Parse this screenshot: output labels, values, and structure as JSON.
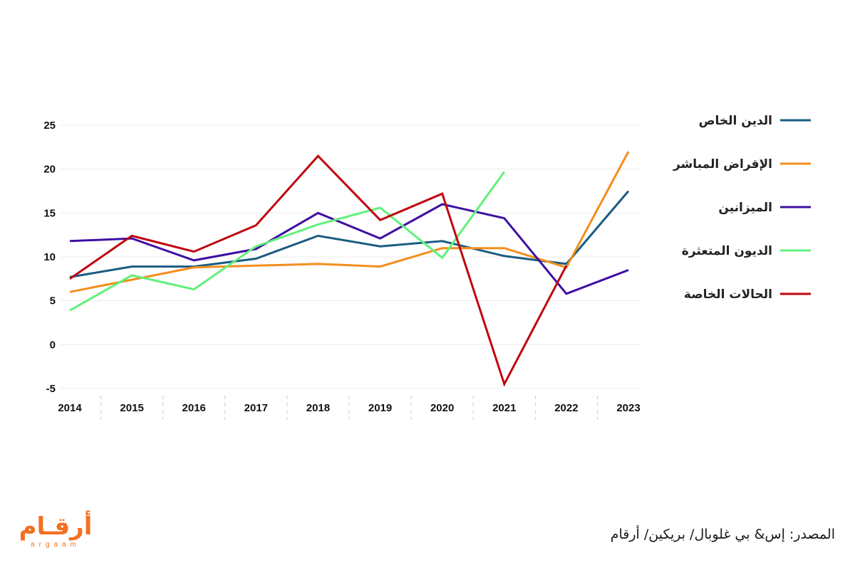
{
  "chart_data": {
    "type": "line",
    "title": "",
    "xlabel": "",
    "ylabel": "",
    "ylim": [
      -5,
      25
    ],
    "yticks": [
      -5,
      0,
      5,
      10,
      15,
      20,
      25
    ],
    "grid": true,
    "legend_position": "right",
    "x": [
      "2014",
      "2015",
      "2016",
      "2017",
      "2018",
      "2019",
      "2020",
      "2021",
      "2022",
      "2023"
    ],
    "series": [
      {
        "name": "الدين الخاص",
        "color": "#1a5c82",
        "values": [
          7.7,
          8.9,
          8.9,
          9.8,
          12.4,
          11.2,
          11.8,
          10.1,
          9.2,
          17.5
        ]
      },
      {
        "name": "الإقراض المباشر",
        "color": "#f28e1c",
        "values": [
          6.0,
          7.4,
          8.8,
          9.0,
          9.2,
          8.9,
          11.0,
          11.0,
          8.8,
          22.0
        ]
      },
      {
        "name": "الميزانين",
        "color": "#3d0fa3",
        "values": [
          11.8,
          12.1,
          9.6,
          10.9,
          15.0,
          12.1,
          16.0,
          14.4,
          5.8,
          8.5
        ]
      },
      {
        "name": "الديون المتعثرة",
        "color": "#62f07c",
        "values": [
          3.9,
          7.9,
          6.3,
          11.2,
          13.7,
          15.6,
          9.9,
          19.7,
          null,
          null
        ]
      },
      {
        "name": "الحالات الخاصة",
        "color": "#c0050f",
        "values": [
          7.5,
          12.4,
          10.6,
          13.6,
          21.5,
          14.2,
          17.2,
          -4.5,
          9.0,
          null
        ]
      }
    ]
  },
  "source_note": "المصدر: إس& بي غلوبال/ بريكين/ أرقام",
  "logo": {
    "main": "أرقـام",
    "sub": "argaam"
  }
}
